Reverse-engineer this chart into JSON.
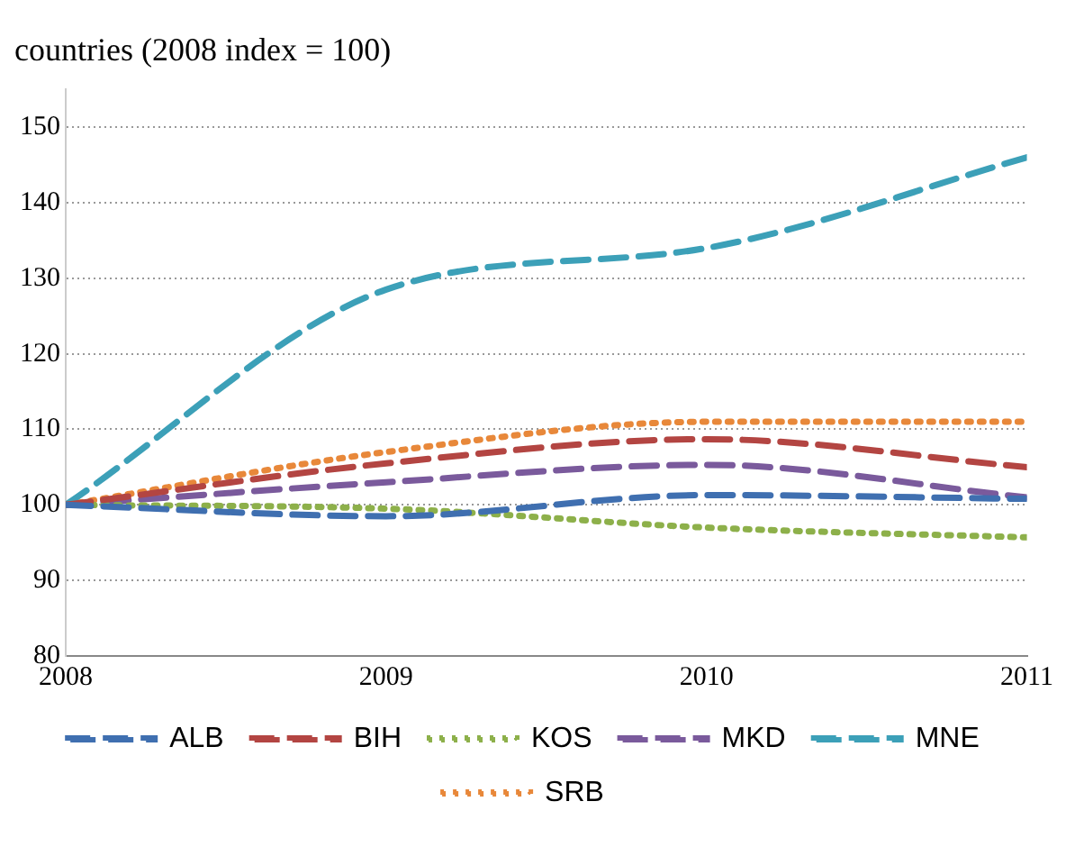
{
  "chart_data": {
    "type": "line",
    "title": "countries (2008 index = 100)",
    "x": [
      2008,
      2009,
      2010,
      2011
    ],
    "series": [
      {
        "name": "ALB",
        "color": "#3f6fb0",
        "values": [
          100,
          98.5,
          101.3,
          100.8
        ],
        "line_style": "dashed"
      },
      {
        "name": "BIH",
        "color": "#b34542",
        "values": [
          100,
          105.5,
          108.7,
          105
        ],
        "line_style": "dashed"
      },
      {
        "name": "KOS",
        "color": "#8db04a",
        "values": [
          100,
          99.5,
          97,
          95.7
        ],
        "line_style": "dotted"
      },
      {
        "name": "MKD",
        "color": "#7a5a9c",
        "values": [
          100,
          103,
          105.3,
          101
        ],
        "line_style": "dashed"
      },
      {
        "name": "MNE",
        "color": "#3ca0b8",
        "values": [
          100,
          128.5,
          134,
          146
        ],
        "line_style": "dashed"
      },
      {
        "name": "SRB",
        "color": "#e8883a",
        "values": [
          100,
          107,
          111,
          111
        ],
        "line_style": "dotted"
      }
    ],
    "xlim": [
      2008,
      2011
    ],
    "xticks": [
      2008,
      2009,
      2010,
      2011
    ],
    "ylim": [
      80,
      155
    ],
    "yticks": [
      80,
      90,
      100,
      110,
      120,
      130,
      140,
      150
    ],
    "grid": "y",
    "legend": "bottom",
    "marker": "none"
  }
}
